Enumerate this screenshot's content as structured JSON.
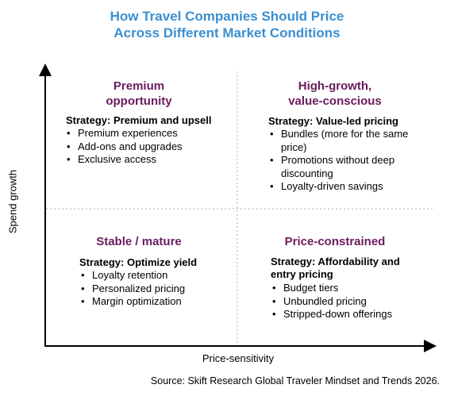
{
  "title": {
    "line1": "How Travel Companies Should Price",
    "line2": "Across Different Market Conditions"
  },
  "axes": {
    "y_label": "Spend growth",
    "x_label": "Price-sensitivity"
  },
  "quadrants": {
    "top_left": {
      "title_line1": "Premium",
      "title_line2": "opportunity",
      "strategy": "Strategy: Premium and upsell",
      "bullets": [
        "Premium experiences",
        "Add-ons and upgrades",
        "Exclusive access"
      ]
    },
    "top_right": {
      "title_line1": "High-growth,",
      "title_line2": "value-conscious",
      "strategy": "Strategy: Value-led pricing",
      "bullets": [
        "Bundles (more for the same price)",
        "Promotions without deep discounting",
        "Loyalty-driven savings"
      ]
    },
    "bottom_left": {
      "title_line1": "Stable / mature",
      "strategy": "Strategy: Optimize yield",
      "bullets": [
        "Loyalty retention",
        "Personalized pricing",
        "Margin optimization"
      ]
    },
    "bottom_right": {
      "title_line1": "Price-constrained",
      "strategy": "Strategy: Affordability and entry pricing",
      "bullets": [
        "Budget tiers",
        "Unbundled pricing",
        "Stripped-down offerings"
      ]
    }
  },
  "source": "Source: Skift Research Global Traveler Mindset and Trends 2026.",
  "colors": {
    "title": "#3a8fd1",
    "quadrant_title": "#6a1b5e",
    "axis": "#000000",
    "divider": "#cccccc"
  }
}
